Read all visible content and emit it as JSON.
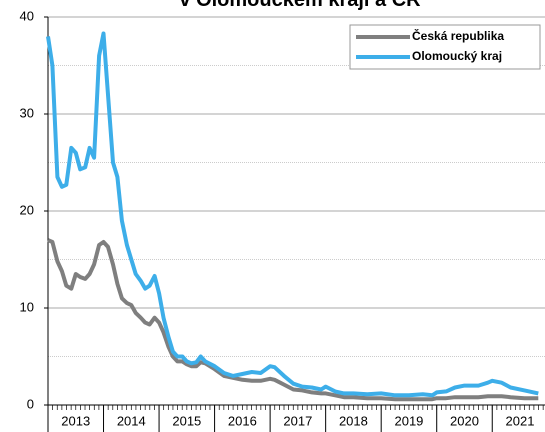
{
  "chart_data": {
    "type": "line",
    "title": "v Olomouckém kraji a ČR",
    "x": [
      2013.0,
      2013.08,
      2013.17,
      2013.25,
      2013.33,
      2013.42,
      2013.5,
      2013.58,
      2013.67,
      2013.75,
      2013.83,
      2013.92,
      2014.0,
      2014.08,
      2014.17,
      2014.25,
      2014.33,
      2014.42,
      2014.5,
      2014.58,
      2014.67,
      2014.75,
      2014.83,
      2014.92,
      2015.0,
      2015.08,
      2015.17,
      2015.25,
      2015.33,
      2015.42,
      2015.5,
      2015.58,
      2015.67,
      2015.75,
      2015.83,
      2016.0,
      2016.17,
      2016.33,
      2016.5,
      2016.67,
      2016.83,
      2017.0,
      2017.08,
      2017.25,
      2017.42,
      2017.58,
      2017.75,
      2017.92,
      2018.0,
      2018.17,
      2018.33,
      2018.5,
      2018.75,
      2019.0,
      2019.25,
      2019.5,
      2019.75,
      2019.92,
      2020.0,
      2020.17,
      2020.33,
      2020.5,
      2020.75,
      2020.92,
      2021.0,
      2021.17,
      2021.33,
      2021.58,
      2021.83
    ],
    "series": [
      {
        "name": "Česká republika",
        "color": "#7f7f7f",
        "values": [
          17,
          16.8,
          14.8,
          13.8,
          12.3,
          12.0,
          13.5,
          13.2,
          13.0,
          13.5,
          14.5,
          16.5,
          16.8,
          16.3,
          14.5,
          12.5,
          11,
          10.5,
          10.3,
          9.5,
          9,
          8.5,
          8.3,
          9,
          8.5,
          7.5,
          6,
          5,
          4.5,
          4.5,
          4.2,
          4.0,
          4.0,
          4.4,
          4.3,
          3.7,
          3.0,
          2.8,
          2.6,
          2.5,
          2.5,
          2.7,
          2.6,
          2.1,
          1.6,
          1.5,
          1.3,
          1.2,
          1.2,
          1.0,
          0.8,
          0.8,
          0.7,
          0.7,
          0.6,
          0.6,
          0.6,
          0.6,
          0.7,
          0.7,
          0.8,
          0.8,
          0.8,
          0.9,
          0.9,
          0.9,
          0.8,
          0.7,
          0.7
        ]
      },
      {
        "name": "Olomoucký kraj",
        "color": "#3daee9",
        "values": [
          38,
          35,
          23.5,
          22.5,
          22.7,
          26.5,
          26,
          24.3,
          24.5,
          26.5,
          25.5,
          36,
          38.3,
          32,
          25,
          23.5,
          19,
          16.5,
          15,
          13.5,
          12.8,
          12,
          12.3,
          13.3,
          11.5,
          9,
          7,
          5.5,
          5,
          5,
          4.5,
          4.3,
          4.4,
          5,
          4.5,
          4,
          3.3,
          3.0,
          3.2,
          3.4,
          3.3,
          4,
          3.9,
          3,
          2.2,
          1.9,
          1.8,
          1.6,
          1.9,
          1.4,
          1.2,
          1.2,
          1.1,
          1.2,
          1.0,
          1.0,
          1.1,
          1.0,
          1.3,
          1.4,
          1.8,
          2.0,
          2.0,
          2.3,
          2.5,
          2.3,
          1.8,
          1.5,
          1.2
        ]
      }
    ],
    "xlim": [
      2013,
      2021.95
    ],
    "xticks": [
      2013,
      2014,
      2015,
      2016,
      2017,
      2018,
      2019,
      2020,
      2021
    ],
    "ylim": [
      0,
      40
    ],
    "yticks": [
      0,
      10,
      20,
      30,
      40
    ],
    "minor_yticks": [
      5,
      15,
      25,
      35
    ],
    "grid": true,
    "legend": "upper right"
  }
}
